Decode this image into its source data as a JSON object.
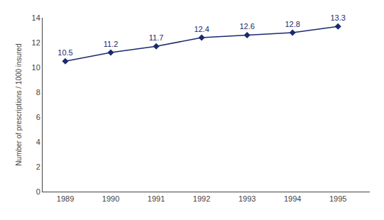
{
  "chart_data": {
    "type": "line",
    "x": [
      1989,
      1990,
      1991,
      1992,
      1993,
      1994,
      1995
    ],
    "values": [
      10.5,
      11.2,
      11.7,
      12.4,
      12.6,
      12.8,
      13.3
    ],
    "ylabel": "Number of prescriptions / 1000 insured",
    "xlim": [
      1988.5,
      1995.7
    ],
    "xticks": [
      1989,
      1990,
      1991,
      1992,
      1993,
      1994,
      1995
    ],
    "ylim": [
      0,
      14
    ],
    "yticks": [
      0,
      2,
      4,
      6,
      8,
      10,
      12,
      14
    ],
    "color": "#1a2a6e",
    "marker": "diamond",
    "data_labels": true,
    "grid": false
  }
}
